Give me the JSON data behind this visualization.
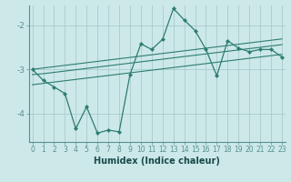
{
  "xlabel": "Humidex (Indice chaleur)",
  "bg_color": "#cce8e8",
  "grid_color": "#aacccc",
  "line_color": "#2e7d6e",
  "axis_color": "#5a9090",
  "x_data": [
    0,
    1,
    2,
    3,
    4,
    5,
    6,
    7,
    8,
    9,
    10,
    11,
    12,
    13,
    14,
    15,
    16,
    17,
    18,
    19,
    20,
    21,
    22,
    23
  ],
  "y_main": [
    -3.0,
    -3.25,
    -3.4,
    -3.55,
    -4.35,
    -3.85,
    -4.45,
    -4.38,
    -4.42,
    -3.12,
    -2.42,
    -2.55,
    -2.32,
    -1.62,
    -1.88,
    -2.12,
    -2.55,
    -3.15,
    -2.35,
    -2.52,
    -2.6,
    -2.55,
    -2.55,
    -2.72
  ],
  "y_upper": [
    -3.0,
    -2.97,
    -2.94,
    -2.91,
    -2.88,
    -2.85,
    -2.82,
    -2.79,
    -2.76,
    -2.73,
    -2.7,
    -2.67,
    -2.64,
    -2.61,
    -2.58,
    -2.55,
    -2.52,
    -2.49,
    -2.46,
    -2.43,
    -2.4,
    -2.37,
    -2.34,
    -2.31
  ],
  "y_mid": [
    -3.12,
    -3.1,
    -3.07,
    -3.04,
    -3.01,
    -2.98,
    -2.95,
    -2.92,
    -2.89,
    -2.86,
    -2.83,
    -2.8,
    -2.77,
    -2.74,
    -2.71,
    -2.68,
    -2.65,
    -2.62,
    -2.59,
    -2.56,
    -2.53,
    -2.5,
    -2.47,
    -2.44
  ],
  "y_lower": [
    -3.35,
    -3.32,
    -3.29,
    -3.26,
    -3.23,
    -3.2,
    -3.17,
    -3.14,
    -3.11,
    -3.08,
    -3.05,
    -3.02,
    -2.99,
    -2.96,
    -2.93,
    -2.9,
    -2.87,
    -2.84,
    -2.81,
    -2.78,
    -2.75,
    -2.72,
    -2.69,
    -2.66
  ],
  "ylim": [
    -4.65,
    -1.55
  ],
  "xlim": [
    -0.3,
    23.3
  ],
  "yticks": [
    -4,
    -3,
    -2
  ],
  "xticks": [
    0,
    1,
    2,
    3,
    4,
    5,
    6,
    7,
    8,
    9,
    10,
    11,
    12,
    13,
    14,
    15,
    16,
    17,
    18,
    19,
    20,
    21,
    22,
    23
  ],
  "tick_fontsize": 5.5,
  "xlabel_fontsize": 7.0
}
